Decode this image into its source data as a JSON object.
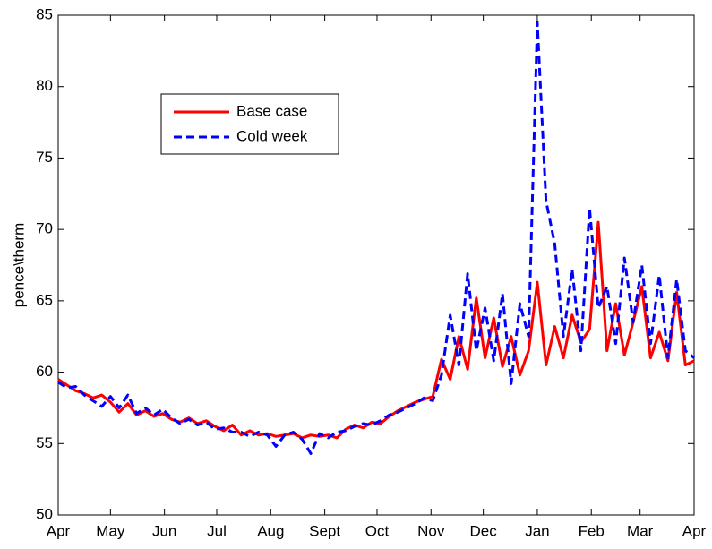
{
  "chart_data": {
    "type": "line",
    "y_label": "pence\\therm",
    "x": [
      0,
      5,
      10,
      15,
      20,
      25,
      30,
      35,
      40,
      45,
      50,
      55,
      60,
      65,
      70,
      75,
      80,
      85,
      90,
      95,
      100,
      105,
      110,
      115,
      120,
      125,
      130,
      135,
      140,
      145,
      150,
      155,
      160,
      165,
      170,
      175,
      180,
      185,
      190,
      195,
      200,
      205,
      210,
      215,
      220,
      225,
      230,
      235,
      240,
      245,
      250,
      255,
      260,
      265,
      270,
      275,
      280,
      285,
      290,
      295,
      300,
      305,
      310,
      315,
      320,
      325,
      330,
      335,
      340,
      345,
      350,
      355,
      360,
      365
    ],
    "series": [
      {
        "name": "Base case",
        "color": "#ff0000",
        "dash": false,
        "values": [
          59.5,
          59.1,
          58.7,
          58.5,
          58.2,
          58.4,
          57.9,
          57.2,
          57.8,
          57.0,
          57.3,
          56.9,
          57.1,
          56.7,
          56.5,
          56.8,
          56.4,
          56.6,
          56.2,
          55.9,
          56.3,
          55.6,
          55.9,
          55.6,
          55.7,
          55.5,
          55.6,
          55.7,
          55.4,
          55.6,
          55.5,
          55.6,
          55.4,
          56.0,
          56.3,
          56.1,
          56.5,
          56.4,
          56.9,
          57.3,
          57.6,
          57.9,
          58.1,
          58.3,
          60.9,
          59.5,
          62.5,
          60.2,
          65.2,
          61.0,
          63.8,
          60.4,
          62.5,
          59.8,
          61.5,
          66.3,
          60.5,
          63.2,
          61.0,
          64.0,
          62.1,
          63.0,
          70.5,
          61.5,
          64.8,
          61.2,
          63.5,
          66.0,
          61.0,
          62.8,
          60.8,
          65.6,
          60.5,
          60.8
        ]
      },
      {
        "name": "Cold week",
        "color": "#0000ff",
        "dash": true,
        "values": [
          59.3,
          58.9,
          59.0,
          58.4,
          58.0,
          57.6,
          58.3,
          57.5,
          58.4,
          57.1,
          57.5,
          57.0,
          57.4,
          56.8,
          56.4,
          56.7,
          56.3,
          56.5,
          56.0,
          56.1,
          55.8,
          55.8,
          55.5,
          55.8,
          55.6,
          54.8,
          55.6,
          55.8,
          55.3,
          54.3,
          55.7,
          55.4,
          55.8,
          55.9,
          56.2,
          56.4,
          56.3,
          56.6,
          57.0,
          57.2,
          57.5,
          57.8,
          58.2,
          58.0,
          59.8,
          64.0,
          60.5,
          66.9,
          61.5,
          64.5,
          60.8,
          65.5,
          59.2,
          64.8,
          62.5,
          84.5,
          72.0,
          69.0,
          62.5,
          67.2,
          61.5,
          71.5,
          64.5,
          66.0,
          62.0,
          68.0,
          63.5,
          67.5,
          62.0,
          66.8,
          61.0,
          66.5,
          61.5,
          61.0
        ]
      }
    ],
    "xlim": [
      0,
      365
    ],
    "xticks": [
      {
        "value": 0,
        "label": "Apr"
      },
      {
        "value": 30,
        "label": "May"
      },
      {
        "value": 61,
        "label": "Jun"
      },
      {
        "value": 91,
        "label": "Jul"
      },
      {
        "value": 122,
        "label": "Aug"
      },
      {
        "value": 153,
        "label": "Sept"
      },
      {
        "value": 183,
        "label": "Oct"
      },
      {
        "value": 214,
        "label": "Nov"
      },
      {
        "value": 244,
        "label": "Dec"
      },
      {
        "value": 275,
        "label": "Jan"
      },
      {
        "value": 306,
        "label": "Feb"
      },
      {
        "value": 334,
        "label": "Mar"
      },
      {
        "value": 365,
        "label": "Apr"
      }
    ],
    "ylim": [
      50,
      85
    ],
    "yticks": [
      50,
      55,
      60,
      65,
      70,
      75,
      80,
      85
    ],
    "grid": false,
    "legend": "upper-left"
  }
}
